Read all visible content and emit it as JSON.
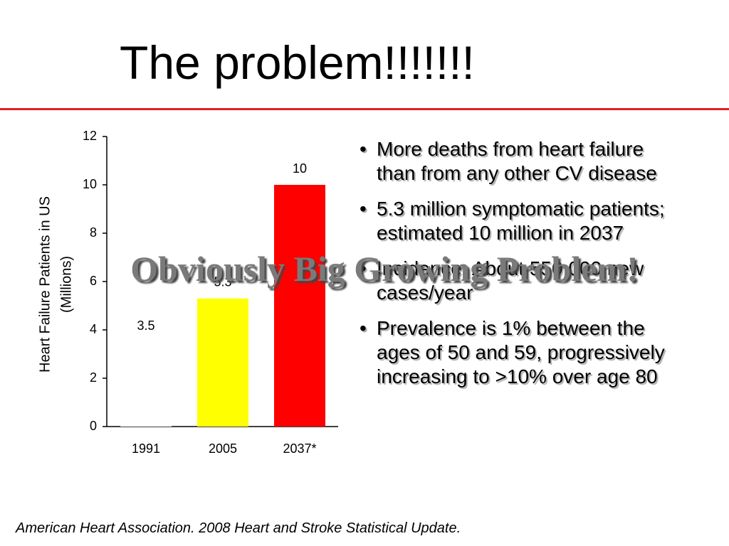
{
  "title": "The problem!!!!!!!",
  "chart_data": {
    "type": "bar",
    "categories": [
      "1991",
      "2005",
      "2037*"
    ],
    "values": [
      3.5,
      5.3,
      10
    ],
    "colors": [
      "#ffffff",
      "#ffff00",
      "#ff0000"
    ],
    "ylabel": [
      "Heart Failure Patients in US",
      "(Millions)"
    ],
    "ylim": [
      0,
      12
    ],
    "yticks": [
      0,
      2,
      4,
      6,
      8,
      10,
      12
    ],
    "grid": false
  },
  "bullets": [
    "More deaths from heart failure than from any other CV disease",
    "5.3 million symptomatic patients; estimated 10 million in 2037",
    "Incidence: About 550,000 new cases/year",
    "Prevalence is 1% between the ages of 50 and 59, progressively increasing to >10% over age 80"
  ],
  "overlay": "Obviously Big Growing Problem!",
  "footnote": "American Heart Association. 2008 Heart and Stroke Statistical Update."
}
